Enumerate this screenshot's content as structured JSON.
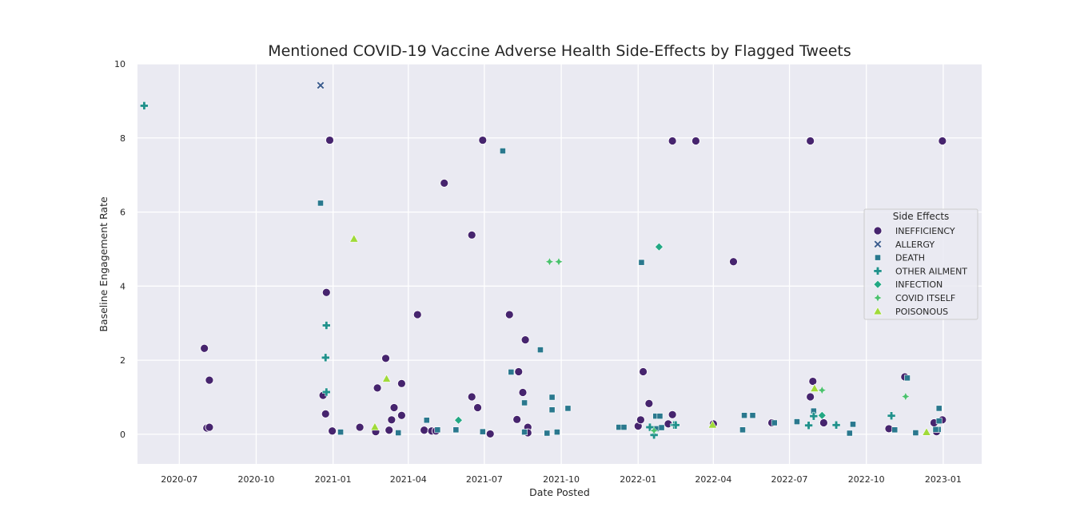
{
  "chart_data": {
    "type": "scatter",
    "title": "Mentioned COVID-19 Vaccine Adverse Health Side-Effects by Flagged Tweets",
    "xlabel": "Date Posted",
    "ylabel": "Baseline Engagement Rate",
    "xlim": [
      "2020-05-12",
      "2023-02-16"
    ],
    "ylim": [
      -0.8,
      10
    ],
    "x_ticks": [
      {
        "date": "2020-07-01",
        "label": "2020-07"
      },
      {
        "date": "2020-10-01",
        "label": "2020-10"
      },
      {
        "date": "2021-01-01",
        "label": "2021-01"
      },
      {
        "date": "2021-04-01",
        "label": "2021-04"
      },
      {
        "date": "2021-07-01",
        "label": "2021-07"
      },
      {
        "date": "2021-10-01",
        "label": "2021-10"
      },
      {
        "date": "2022-01-01",
        "label": "2022-01"
      },
      {
        "date": "2022-04-01",
        "label": "2022-04"
      },
      {
        "date": "2022-07-01",
        "label": "2022-07"
      },
      {
        "date": "2022-10-01",
        "label": "2022-10"
      },
      {
        "date": "2023-01-01",
        "label": "2023-01"
      }
    ],
    "y_ticks": [
      {
        "value": 0,
        "label": "0"
      },
      {
        "value": 2,
        "label": "2"
      },
      {
        "value": 4,
        "label": "4"
      },
      {
        "value": 6,
        "label": "6"
      },
      {
        "value": 8,
        "label": "8"
      },
      {
        "value": 10,
        "label": "10"
      }
    ],
    "grid": true,
    "legend": {
      "title": "Side Effects",
      "location": "right"
    },
    "series": [
      {
        "name": "INEFFICIENCY",
        "marker": "circle",
        "color": "#46246e",
        "points": [
          {
            "x": "2020-07-31",
            "y": 2.32
          },
          {
            "x": "2020-08-03",
            "y": 0.17
          },
          {
            "x": "2020-08-06",
            "y": 1.46
          },
          {
            "x": "2020-08-06",
            "y": 0.19
          },
          {
            "x": "2020-12-20",
            "y": 1.05
          },
          {
            "x": "2020-12-23",
            "y": 0.55
          },
          {
            "x": "2020-12-24",
            "y": 3.83
          },
          {
            "x": "2020-12-28",
            "y": 7.94
          },
          {
            "x": "2020-12-31",
            "y": 0.09
          },
          {
            "x": "2021-02-02",
            "y": 0.19
          },
          {
            "x": "2021-02-21",
            "y": 0.07
          },
          {
            "x": "2021-02-23",
            "y": 1.25
          },
          {
            "x": "2021-03-05",
            "y": 2.05
          },
          {
            "x": "2021-03-09",
            "y": 0.11
          },
          {
            "x": "2021-03-12",
            "y": 0.39
          },
          {
            "x": "2021-03-15",
            "y": 0.72
          },
          {
            "x": "2021-03-24",
            "y": 1.37
          },
          {
            "x": "2021-03-24",
            "y": 0.51
          },
          {
            "x": "2021-04-12",
            "y": 3.23
          },
          {
            "x": "2021-04-20",
            "y": 0.11
          },
          {
            "x": "2021-04-29",
            "y": 0.09
          },
          {
            "x": "2021-05-04",
            "y": 0.09
          },
          {
            "x": "2021-05-14",
            "y": 6.78
          },
          {
            "x": "2021-06-16",
            "y": 5.38
          },
          {
            "x": "2021-06-16",
            "y": 1.01
          },
          {
            "x": "2021-06-23",
            "y": 0.72
          },
          {
            "x": "2021-06-29",
            "y": 7.94
          },
          {
            "x": "2021-07-08",
            "y": 0.01
          },
          {
            "x": "2021-07-31",
            "y": 3.23
          },
          {
            "x": "2021-08-09",
            "y": 0.4
          },
          {
            "x": "2021-08-11",
            "y": 1.69
          },
          {
            "x": "2021-08-16",
            "y": 1.13
          },
          {
            "x": "2021-08-19",
            "y": 2.55
          },
          {
            "x": "2021-08-19",
            "y": 0.07
          },
          {
            "x": "2021-08-22",
            "y": 0.19
          },
          {
            "x": "2021-08-22",
            "y": 0.04
          },
          {
            "x": "2022-01-01",
            "y": 0.22
          },
          {
            "x": "2022-01-04",
            "y": 0.39
          },
          {
            "x": "2022-01-07",
            "y": 1.69
          },
          {
            "x": "2022-01-14",
            "y": 0.83
          },
          {
            "x": "2022-02-06",
            "y": 0.28
          },
          {
            "x": "2022-02-11",
            "y": 7.92
          },
          {
            "x": "2022-02-11",
            "y": 0.53
          },
          {
            "x": "2022-03-11",
            "y": 7.92
          },
          {
            "x": "2022-04-01",
            "y": 0.28
          },
          {
            "x": "2022-04-25",
            "y": 4.66
          },
          {
            "x": "2022-06-10",
            "y": 0.31
          },
          {
            "x": "2022-07-26",
            "y": 7.92
          },
          {
            "x": "2022-07-26",
            "y": 1.01
          },
          {
            "x": "2022-07-29",
            "y": 1.43
          },
          {
            "x": "2022-08-11",
            "y": 0.31
          },
          {
            "x": "2022-10-28",
            "y": 0.15
          },
          {
            "x": "2022-12-21",
            "y": 0.31
          },
          {
            "x": "2022-12-24",
            "y": 0.07
          },
          {
            "x": "2022-12-31",
            "y": 7.92
          },
          {
            "x": "2022-12-31",
            "y": 0.39
          },
          {
            "x": "2022-11-16",
            "y": 1.55
          }
        ]
      },
      {
        "name": "ALLERGY",
        "marker": "x",
        "color": "#38598c",
        "points": [
          {
            "x": "2020-12-17",
            "y": 9.42
          }
        ]
      },
      {
        "name": "DEATH",
        "marker": "square",
        "color": "#2a788e",
        "points": [
          {
            "x": "2020-12-17",
            "y": 6.24
          },
          {
            "x": "2021-01-10",
            "y": 0.06
          },
          {
            "x": "2021-03-20",
            "y": 0.04
          },
          {
            "x": "2021-04-23",
            "y": 0.38
          },
          {
            "x": "2021-05-06",
            "y": 0.12
          },
          {
            "x": "2021-05-28",
            "y": 0.12
          },
          {
            "x": "2021-06-29",
            "y": 0.07
          },
          {
            "x": "2021-07-23",
            "y": 7.65
          },
          {
            "x": "2021-08-02",
            "y": 1.68
          },
          {
            "x": "2021-08-18",
            "y": 0.85
          },
          {
            "x": "2021-08-18",
            "y": 0.06
          },
          {
            "x": "2021-09-06",
            "y": 2.28
          },
          {
            "x": "2021-09-14",
            "y": 0.03
          },
          {
            "x": "2021-09-20",
            "y": 1.0
          },
          {
            "x": "2021-09-20",
            "y": 0.66
          },
          {
            "x": "2021-09-26",
            "y": 0.06
          },
          {
            "x": "2021-10-09",
            "y": 0.7
          },
          {
            "x": "2021-12-09",
            "y": 0.19
          },
          {
            "x": "2021-12-15",
            "y": 0.19
          },
          {
            "x": "2022-01-05",
            "y": 4.64
          },
          {
            "x": "2022-01-22",
            "y": 0.49
          },
          {
            "x": "2022-01-23",
            "y": 0.15
          },
          {
            "x": "2022-01-27",
            "y": 0.49
          },
          {
            "x": "2022-01-29",
            "y": 0.18
          },
          {
            "x": "2022-05-06",
            "y": 0.12
          },
          {
            "x": "2022-05-08",
            "y": 0.51
          },
          {
            "x": "2022-05-18",
            "y": 0.51
          },
          {
            "x": "2022-06-13",
            "y": 0.31
          },
          {
            "x": "2022-07-10",
            "y": 0.34
          },
          {
            "x": "2022-07-30",
            "y": 0.63
          },
          {
            "x": "2022-09-11",
            "y": 0.03
          },
          {
            "x": "2022-09-15",
            "y": 0.27
          },
          {
            "x": "2022-11-04",
            "y": 0.12
          },
          {
            "x": "2022-11-19",
            "y": 1.52
          },
          {
            "x": "2022-11-29",
            "y": 0.04
          },
          {
            "x": "2022-12-26",
            "y": 0.13
          },
          {
            "x": "2022-12-27",
            "y": 0.7
          },
          {
            "x": "2022-12-27",
            "y": 0.36
          },
          {
            "x": "2022-12-23",
            "y": 0.13
          }
        ]
      },
      {
        "name": "OTHER AILMENT",
        "marker": "plus",
        "color": "#21918c",
        "points": [
          {
            "x": "2020-05-20",
            "y": 8.87
          },
          {
            "x": "2020-12-24",
            "y": 2.94
          },
          {
            "x": "2020-12-23",
            "y": 2.07
          },
          {
            "x": "2020-12-24",
            "y": 1.14
          },
          {
            "x": "2022-01-15",
            "y": 0.19
          },
          {
            "x": "2022-01-20",
            "y": -0.02
          },
          {
            "x": "2022-02-13",
            "y": 0.25
          },
          {
            "x": "2022-02-15",
            "y": 0.25
          },
          {
            "x": "2022-07-24",
            "y": 0.24
          },
          {
            "x": "2022-07-30",
            "y": 0.49
          },
          {
            "x": "2022-08-26",
            "y": 0.25
          },
          {
            "x": "2022-10-31",
            "y": 0.5
          }
        ]
      },
      {
        "name": "INFECTION",
        "marker": "diamond",
        "color": "#23a884",
        "points": [
          {
            "x": "2021-05-31",
            "y": 0.38
          },
          {
            "x": "2022-01-26",
            "y": 5.06
          },
          {
            "x": "2022-08-09",
            "y": 0.51
          }
        ]
      },
      {
        "name": "COVID ITSELF",
        "marker": "star",
        "color": "#4ac16d",
        "points": [
          {
            "x": "2021-09-17",
            "y": 4.66
          },
          {
            "x": "2021-09-28",
            "y": 4.66
          },
          {
            "x": "2022-01-20",
            "y": 0.1
          },
          {
            "x": "2022-08-09",
            "y": 1.19
          },
          {
            "x": "2022-11-17",
            "y": 1.02
          }
        ]
      },
      {
        "name": "POISONOUS",
        "marker": "triangle",
        "color": "#a0da39",
        "points": [
          {
            "x": "2021-01-26",
            "y": 5.28
          },
          {
            "x": "2021-02-20",
            "y": 0.2
          },
          {
            "x": "2021-03-06",
            "y": 1.5
          },
          {
            "x": "2022-03-31",
            "y": 0.26
          },
          {
            "x": "2022-07-31",
            "y": 1.24
          },
          {
            "x": "2022-12-12",
            "y": 0.06
          }
        ]
      }
    ]
  }
}
